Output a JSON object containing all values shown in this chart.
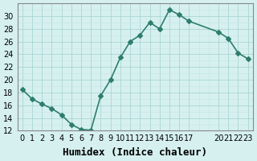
{
  "x": [
    0,
    1,
    2,
    3,
    4,
    5,
    6,
    7,
    8,
    9,
    10,
    11,
    12,
    13,
    14,
    15,
    16,
    17,
    20,
    21,
    22,
    23
  ],
  "y": [
    18.5,
    17.0,
    16.2,
    15.5,
    14.5,
    13.0,
    12.2,
    12.1,
    17.5,
    20.0,
    23.5,
    26.0,
    27.0,
    29.0,
    28.0,
    31.0,
    30.2,
    29.2,
    27.5,
    26.5,
    24.2,
    23.3
  ],
  "line_color": "#2e7d6e",
  "bg_color": "#d6f0f0",
  "grid_color_major": "#aad4d4",
  "grid_color_minor": "#c5e5e5",
  "xlabel": "Humidex (Indice chaleur)",
  "ylim": [
    12,
    32
  ],
  "yticks": [
    12,
    14,
    16,
    18,
    20,
    22,
    24,
    26,
    28,
    30
  ],
  "xtick_positions": [
    0,
    1,
    2,
    3,
    4,
    5,
    6,
    7,
    8,
    9,
    10,
    11,
    12,
    13,
    14,
    15,
    16,
    17,
    20,
    21,
    22,
    23
  ],
  "xtick_labels": [
    "0",
    "1",
    "2",
    "3",
    "4",
    "5",
    "6",
    "7",
    "8",
    "9",
    "10",
    "11",
    "12",
    "13",
    "14",
    "15",
    "16",
    "17",
    "20",
    "21",
    "22",
    "23"
  ],
  "marker": "D",
  "marker_size": 3,
  "line_width": 1.2,
  "xlabel_fontsize": 9,
  "tick_fontsize": 7
}
